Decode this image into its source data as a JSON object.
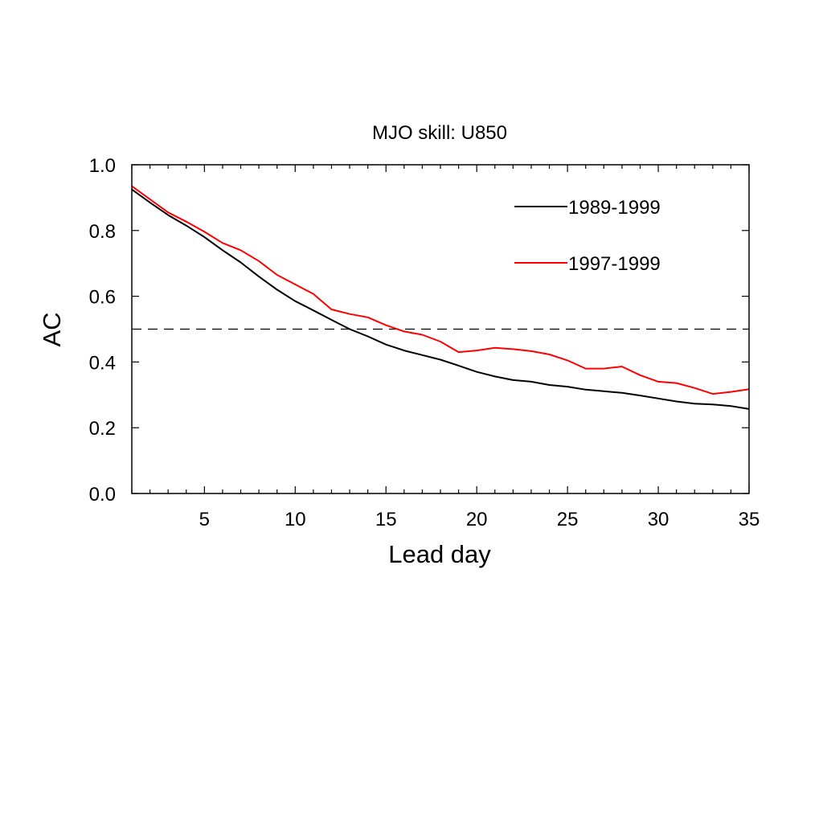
{
  "chart_data": {
    "type": "line",
    "title": "MJO skill: U850",
    "xlabel": "Lead day",
    "ylabel": "AC",
    "xlim": [
      1,
      35
    ],
    "ylim": [
      0.0,
      1.0
    ],
    "x_ticks": [
      5,
      10,
      15,
      20,
      25,
      30,
      35
    ],
    "y_ticks": [
      0.0,
      0.2,
      0.4,
      0.6,
      0.8,
      1.0
    ],
    "y_tick_labels": [
      "0.0",
      "0.2",
      "0.4",
      "0.6",
      "0.8",
      "1.0"
    ],
    "x_minor_step": 1,
    "grid": false,
    "legend_position": "top-right",
    "reference_line": {
      "y": 0.5,
      "style": "dashed",
      "color": "#000000"
    },
    "x": [
      1,
      2,
      3,
      4,
      5,
      6,
      7,
      8,
      9,
      10,
      11,
      12,
      13,
      14,
      15,
      16,
      17,
      18,
      19,
      20,
      21,
      22,
      23,
      24,
      25,
      26,
      27,
      28,
      29,
      30,
      31,
      32,
      33,
      34,
      35
    ],
    "series": [
      {
        "name": "1989-1999",
        "color": "#000000",
        "values": [
          0.925,
          0.885,
          0.847,
          0.815,
          0.78,
          0.74,
          0.703,
          0.66,
          0.62,
          0.585,
          0.557,
          0.528,
          0.5,
          0.478,
          0.453,
          0.435,
          0.421,
          0.407,
          0.389,
          0.37,
          0.356,
          0.345,
          0.34,
          0.33,
          0.325,
          0.316,
          0.311,
          0.306,
          0.298,
          0.289,
          0.28,
          0.273,
          0.271,
          0.266,
          0.257
        ]
      },
      {
        "name": "1997-1999",
        "color": "#ff0000",
        "values": [
          0.935,
          0.895,
          0.855,
          0.827,
          0.796,
          0.762,
          0.74,
          0.707,
          0.665,
          0.636,
          0.607,
          0.56,
          0.546,
          0.536,
          0.512,
          0.493,
          0.483,
          0.462,
          0.43,
          0.435,
          0.443,
          0.439,
          0.433,
          0.423,
          0.405,
          0.38,
          0.38,
          0.386,
          0.36,
          0.34,
          0.336,
          0.321,
          0.303,
          0.309,
          0.317
        ]
      }
    ]
  }
}
